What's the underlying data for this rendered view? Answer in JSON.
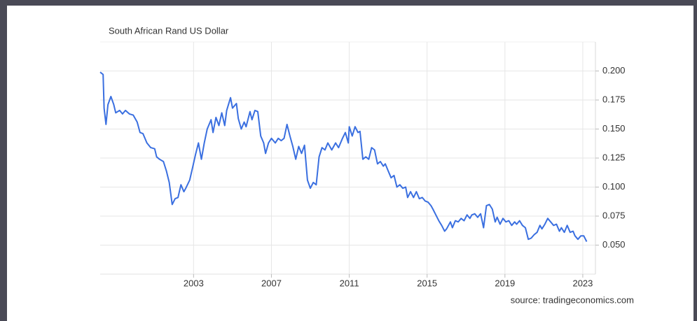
{
  "chart_data": {
    "type": "line",
    "title": "South African Rand US Dollar",
    "source": "source: tradingeconomics.com",
    "color": "#3a6fe0",
    "grid": true,
    "xlim": [
      1998.2,
      2023.65
    ],
    "xticks": [
      2003,
      2007,
      2011,
      2015,
      2019,
      2023
    ],
    "ylim": [
      0.025,
      0.225
    ],
    "yticks": [
      {
        "value": 0.05,
        "label": "0.050"
      },
      {
        "value": 0.075,
        "label": "0.075"
      },
      {
        "value": 0.1,
        "label": "0.100"
      },
      {
        "value": 0.125,
        "label": "0.125"
      },
      {
        "value": 0.15,
        "label": "0.150"
      },
      {
        "value": 0.175,
        "label": "0.175"
      },
      {
        "value": 0.2,
        "label": "0.200"
      }
    ],
    "x": [
      1998.2,
      1998.35,
      1998.4,
      1998.5,
      1998.6,
      1998.75,
      1998.9,
      1999.0,
      1999.2,
      1999.35,
      1999.5,
      1999.7,
      1999.9,
      2000.1,
      2000.25,
      2000.4,
      2000.6,
      2000.8,
      2001.0,
      2001.1,
      2001.25,
      2001.45,
      2001.6,
      2001.75,
      2001.9,
      2002.05,
      2002.2,
      2002.35,
      2002.5,
      2002.6,
      2002.8,
      2002.95,
      2003.1,
      2003.25,
      2003.4,
      2003.55,
      2003.7,
      2003.9,
      2004.0,
      2004.15,
      2004.3,
      2004.45,
      2004.6,
      2004.7,
      2004.9,
      2005.0,
      2005.2,
      2005.3,
      2005.45,
      2005.6,
      2005.7,
      2005.9,
      2006.0,
      2006.15,
      2006.3,
      2006.45,
      2006.6,
      2006.7,
      2006.85,
      2007.0,
      2007.2,
      2007.35,
      2007.5,
      2007.65,
      2007.8,
      2007.95,
      2008.1,
      2008.25,
      2008.4,
      2008.55,
      2008.7,
      2008.85,
      2009.0,
      2009.15,
      2009.3,
      2009.45,
      2009.6,
      2009.75,
      2009.9,
      2010.1,
      2010.3,
      2010.45,
      2010.65,
      2010.8,
      2010.95,
      2011.0,
      2011.15,
      2011.3,
      2011.45,
      2011.55,
      2011.7,
      2011.85,
      2012.0,
      2012.15,
      2012.3,
      2012.45,
      2012.6,
      2012.75,
      2012.85,
      2013.0,
      2013.15,
      2013.3,
      2013.45,
      2013.6,
      2013.75,
      2013.9,
      2014.0,
      2014.15,
      2014.3,
      2014.45,
      2014.6,
      2014.75,
      2014.9,
      2015.05,
      2015.2,
      2015.3,
      2015.45,
      2015.6,
      2015.75,
      2015.9,
      2016.0,
      2016.2,
      2016.3,
      2016.45,
      2016.6,
      2016.75,
      2016.9,
      2017.05,
      2017.2,
      2017.3,
      2017.45,
      2017.6,
      2017.75,
      2017.9,
      2018.05,
      2018.2,
      2018.35,
      2018.5,
      2018.6,
      2018.75,
      2018.9,
      2019.05,
      2019.2,
      2019.35,
      2019.5,
      2019.6,
      2019.75,
      2019.9,
      2020.05,
      2020.2,
      2020.35,
      2020.5,
      2020.65,
      2020.8,
      2020.9,
      2021.05,
      2021.2,
      2021.35,
      2021.5,
      2021.65,
      2021.8,
      2021.9,
      2022.05,
      2022.2,
      2022.35,
      2022.5,
      2022.6,
      2022.75,
      2022.9,
      2023.05,
      2023.2
    ],
    "values": [
      0.199,
      0.197,
      0.168,
      0.154,
      0.171,
      0.178,
      0.171,
      0.164,
      0.166,
      0.163,
      0.166,
      0.163,
      0.162,
      0.156,
      0.147,
      0.146,
      0.138,
      0.134,
      0.133,
      0.126,
      0.124,
      0.122,
      0.114,
      0.104,
      0.085,
      0.09,
      0.091,
      0.102,
      0.096,
      0.099,
      0.106,
      0.117,
      0.128,
      0.138,
      0.124,
      0.138,
      0.15,
      0.158,
      0.147,
      0.16,
      0.153,
      0.164,
      0.153,
      0.166,
      0.177,
      0.168,
      0.172,
      0.159,
      0.15,
      0.156,
      0.152,
      0.165,
      0.158,
      0.166,
      0.165,
      0.144,
      0.138,
      0.129,
      0.138,
      0.142,
      0.138,
      0.142,
      0.14,
      0.142,
      0.154,
      0.144,
      0.135,
      0.124,
      0.135,
      0.129,
      0.136,
      0.106,
      0.099,
      0.104,
      0.102,
      0.126,
      0.134,
      0.132,
      0.138,
      0.132,
      0.138,
      0.134,
      0.142,
      0.147,
      0.138,
      0.152,
      0.144,
      0.152,
      0.147,
      0.148,
      0.124,
      0.126,
      0.124,
      0.134,
      0.132,
      0.12,
      0.122,
      0.118,
      0.12,
      0.114,
      0.108,
      0.11,
      0.1,
      0.102,
      0.099,
      0.1,
      0.091,
      0.096,
      0.091,
      0.096,
      0.09,
      0.091,
      0.088,
      0.087,
      0.084,
      0.081,
      0.076,
      0.071,
      0.067,
      0.062,
      0.064,
      0.07,
      0.065,
      0.071,
      0.07,
      0.073,
      0.071,
      0.076,
      0.073,
      0.076,
      0.077,
      0.074,
      0.077,
      0.065,
      0.084,
      0.085,
      0.081,
      0.07,
      0.074,
      0.068,
      0.073,
      0.07,
      0.071,
      0.067,
      0.07,
      0.068,
      0.071,
      0.067,
      0.065,
      0.055,
      0.056,
      0.059,
      0.061,
      0.067,
      0.064,
      0.068,
      0.073,
      0.07,
      0.067,
      0.068,
      0.062,
      0.065,
      0.061,
      0.067,
      0.061,
      0.062,
      0.058,
      0.055,
      0.058,
      0.058,
      0.053
    ]
  }
}
